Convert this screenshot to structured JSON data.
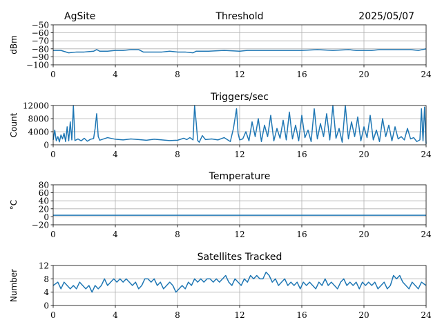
{
  "header": {
    "left": "AgSite",
    "date": "2025/05/07"
  },
  "colors": {
    "series": "#1f77b4",
    "grid": "#b0b0b0"
  },
  "chart_data": [
    {
      "type": "line",
      "title": "Threshold",
      "ylabel": "dBm",
      "xlim": [
        0,
        24
      ],
      "ylim": [
        -100,
        -50
      ],
      "xticks": [
        0,
        4,
        8,
        12,
        16,
        20,
        24
      ],
      "yticks": [
        -100,
        -90,
        -80,
        -70,
        -60,
        -50
      ],
      "xticklabels": [
        "0",
        "4",
        "8",
        "12",
        "16",
        "20",
        "24"
      ],
      "yticklabels": [
        "−100",
        "−90",
        "−80",
        "−70",
        "−60",
        "−50"
      ],
      "grid": true,
      "series": [
        {
          "x": [
            0,
            0.5,
            1,
            1.5,
            2,
            2.6,
            2.8,
            3,
            3.5,
            4,
            4.5,
            5,
            5.5,
            5.8,
            6,
            7,
            7.5,
            8,
            8.5,
            9,
            9.2,
            9.5,
            10,
            11,
            12,
            12.5,
            13,
            14,
            15,
            16,
            17,
            18,
            19,
            19.5,
            20,
            20.5,
            21,
            22,
            23,
            23.5,
            24
          ],
          "y": [
            -82,
            -82,
            -85,
            -84,
            -84,
            -83,
            -81,
            -83,
            -83,
            -82,
            -82,
            -81,
            -81,
            -84,
            -84,
            -84,
            -83,
            -84,
            -84,
            -85,
            -83,
            -83,
            -83,
            -82,
            -83,
            -82,
            -82,
            -82,
            -82,
            -82,
            -81,
            -82,
            -81,
            -82,
            -82,
            -82,
            -81,
            -81,
            -81,
            -82,
            -80
          ]
        }
      ]
    },
    {
      "type": "line",
      "title": "Triggers/sec",
      "ylabel": "Count",
      "xlim": [
        0,
        24
      ],
      "ylim": [
        0,
        12000
      ],
      "xticks": [
        0,
        4,
        8,
        12,
        16,
        20,
        24
      ],
      "yticks": [
        0,
        4000,
        8000,
        12000
      ],
      "xticklabels": [
        "0",
        "4",
        "8",
        "12",
        "16",
        "20",
        "24"
      ],
      "yticklabels": [
        "0",
        "4000",
        "8000",
        "12000"
      ],
      "grid": true,
      "series": [
        {
          "x": [
            0,
            0.1,
            0.2,
            0.3,
            0.4,
            0.5,
            0.6,
            0.7,
            0.8,
            0.9,
            1.0,
            1.1,
            1.2,
            1.3,
            1.4,
            1.6,
            1.8,
            2.0,
            2.2,
            2.4,
            2.6,
            2.7,
            2.8,
            2.9,
            3.0,
            3.5,
            4.0,
            4.5,
            5.0,
            5.5,
            6.0,
            6.5,
            7.0,
            7.5,
            8.0,
            8.4,
            8.6,
            8.8,
            9.0,
            9.1,
            9.2,
            9.3,
            9.4,
            9.6,
            9.8,
            10.2,
            10.6,
            11.0,
            11.4,
            11.6,
            11.8,
            11.9,
            12.0,
            12.2,
            12.4,
            12.6,
            12.8,
            13.0,
            13.2,
            13.4,
            13.6,
            13.8,
            14.0,
            14.2,
            14.4,
            14.6,
            14.8,
            15.0,
            15.2,
            15.4,
            15.6,
            15.8,
            16.0,
            16.2,
            16.4,
            16.6,
            16.8,
            17.0,
            17.2,
            17.4,
            17.6,
            17.8,
            18.0,
            18.2,
            18.4,
            18.6,
            18.8,
            19.0,
            19.2,
            19.4,
            19.6,
            19.8,
            20.0,
            20.2,
            20.4,
            20.6,
            20.8,
            21.0,
            21.2,
            21.4,
            21.6,
            21.8,
            22.0,
            22.2,
            22.4,
            22.6,
            22.8,
            23.0,
            23.2,
            23.4,
            23.6,
            23.7,
            23.8,
            23.9,
            24.0
          ],
          "y": [
            1500,
            4500,
            1200,
            2500,
            900,
            3000,
            1800,
            3500,
            1000,
            5500,
            1200,
            7000,
            1500,
            12000,
            1300,
            1800,
            1200,
            2000,
            1100,
            1700,
            1900,
            5000,
            9500,
            2500,
            1400,
            2200,
            1700,
            1500,
            1800,
            1600,
            1400,
            1700,
            1500,
            1300,
            1400,
            2000,
            1600,
            2200,
            1500,
            12000,
            7000,
            1300,
            800,
            2800,
            1600,
            1800,
            1500,
            2200,
            1000,
            5000,
            11000,
            3500,
            1500,
            1800,
            4000,
            1200,
            7000,
            2500,
            8000,
            1000,
            6000,
            2500,
            9000,
            1200,
            5000,
            2000,
            7500,
            1500,
            10000,
            1800,
            6000,
            1200,
            9000,
            2200,
            4500,
            1000,
            11000,
            1800,
            6500,
            2500,
            9500,
            1500,
            12000,
            2000,
            5000,
            800,
            12000,
            1800,
            7000,
            2500,
            8500,
            1200,
            5500,
            2200,
            9000,
            1500,
            4500,
            1000,
            8000,
            2500,
            6000,
            1200,
            5500,
            1800,
            2500,
            1500,
            5000,
            1800,
            2200,
            1000,
            1500,
            11000,
            1200,
            11500,
            300
          ]
        }
      ]
    },
    {
      "type": "line",
      "title": "Temperature",
      "ylabel": "°C",
      "xlim": [
        0,
        24
      ],
      "ylim": [
        -20,
        80
      ],
      "xticks": [
        0,
        4,
        8,
        12,
        16,
        20,
        24
      ],
      "yticks": [
        -20,
        0,
        20,
        40,
        60,
        80
      ],
      "xticklabels": [
        "0",
        "4",
        "8",
        "12",
        "16",
        "20",
        "24"
      ],
      "yticklabels": [
        "−20",
        "0",
        "20",
        "40",
        "60",
        "80"
      ],
      "grid": true,
      "series": [
        {
          "x": [
            0,
            24
          ],
          "y": [
            4,
            4
          ]
        }
      ]
    },
    {
      "type": "line",
      "title": "Satellites Tracked",
      "ylabel": "Number",
      "xlim": [
        0,
        24
      ],
      "ylim": [
        0,
        12
      ],
      "xticks": [
        0,
        4,
        8,
        12,
        16,
        20,
        24
      ],
      "yticks": [
        0,
        4,
        8,
        12
      ],
      "xticklabels": [
        "0",
        "4",
        "8",
        "12",
        "16",
        "20",
        "24"
      ],
      "yticklabels": [
        "0",
        "4",
        "8",
        "12"
      ],
      "grid": true,
      "series": [
        {
          "x": [
            0,
            0.3,
            0.5,
            0.7,
            0.9,
            1.1,
            1.3,
            1.5,
            1.7,
            1.9,
            2.1,
            2.3,
            2.5,
            2.7,
            2.9,
            3.1,
            3.3,
            3.5,
            3.7,
            3.9,
            4.1,
            4.3,
            4.5,
            4.7,
            4.9,
            5.1,
            5.3,
            5.5,
            5.7,
            5.9,
            6.1,
            6.3,
            6.5,
            6.7,
            6.9,
            7.1,
            7.3,
            7.5,
            7.7,
            7.9,
            8.1,
            8.3,
            8.5,
            8.7,
            8.9,
            9.1,
            9.3,
            9.5,
            9.7,
            9.9,
            10.1,
            10.3,
            10.5,
            10.7,
            10.9,
            11.1,
            11.3,
            11.5,
            11.7,
            11.9,
            12.1,
            12.3,
            12.5,
            12.7,
            12.9,
            13.1,
            13.3,
            13.5,
            13.7,
            13.9,
            14.1,
            14.3,
            14.5,
            14.7,
            14.9,
            15.1,
            15.3,
            15.5,
            15.7,
            15.9,
            16.1,
            16.3,
            16.5,
            16.7,
            16.9,
            17.1,
            17.3,
            17.5,
            17.7,
            17.9,
            18.1,
            18.3,
            18.5,
            18.7,
            18.9,
            19.1,
            19.3,
            19.5,
            19.7,
            19.9,
            20.1,
            20.3,
            20.5,
            20.7,
            20.9,
            21.1,
            21.3,
            21.5,
            21.7,
            21.9,
            22.1,
            22.3,
            22.5,
            22.7,
            22.9,
            23.1,
            23.3,
            23.5,
            23.7,
            24
          ],
          "y": [
            6,
            7,
            5,
            7,
            6,
            5,
            6,
            5,
            7,
            6,
            5,
            6,
            4,
            6,
            5,
            6,
            8,
            6,
            7,
            8,
            7,
            8,
            7,
            8,
            7,
            6,
            7,
            5,
            6,
            8,
            8,
            7,
            8,
            6,
            7,
            5,
            6,
            7,
            6,
            4,
            5,
            6,
            5,
            7,
            6,
            8,
            7,
            8,
            7,
            8,
            8,
            7,
            8,
            7,
            8,
            9,
            7,
            6,
            8,
            7,
            6,
            8,
            7,
            9,
            8,
            9,
            8,
            8,
            10,
            9,
            7,
            8,
            6,
            7,
            8,
            6,
            7,
            6,
            7,
            5,
            7,
            6,
            7,
            6,
            5,
            7,
            6,
            8,
            6,
            7,
            6,
            5,
            7,
            8,
            6,
            7,
            6,
            7,
            5,
            7,
            6,
            7,
            6,
            7,
            5,
            6,
            7,
            5,
            6,
            9,
            8,
            9,
            7,
            6,
            5,
            7,
            6,
            5,
            7,
            6
          ]
        }
      ]
    }
  ]
}
